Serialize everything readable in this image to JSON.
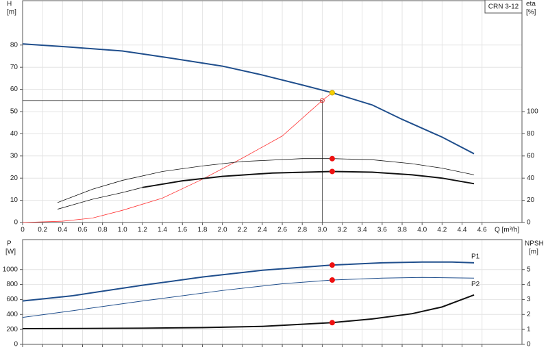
{
  "chart_data": [
    {
      "type": "line",
      "label": "CRN 3-12",
      "y_label": "H",
      "y_unit": "[m]",
      "y2_label": "eta",
      "y2_unit": "[%]",
      "x_label": "Q [m³/h]",
      "xlim": [
        0,
        5
      ],
      "ylim": [
        0,
        100
      ],
      "y2lim": [
        0,
        200
      ],
      "grid": true,
      "xticks": [
        0,
        0.2,
        0.4,
        0.6,
        0.8,
        {
          "value": 1,
          "label": "1.0"
        },
        1.2,
        1.4,
        1.6,
        1.8,
        {
          "value": 2,
          "label": "2.0"
        },
        2.2,
        2.4,
        2.6,
        2.8,
        {
          "value": 3,
          "label": "3.0"
        },
        3.2,
        3.4,
        3.6,
        3.8,
        {
          "value": 4,
          "label": "4.0"
        },
        4.2,
        4.4,
        4.6
      ],
      "yticks": [
        0,
        10,
        20,
        30,
        40,
        50,
        60,
        70,
        80
      ],
      "y2ticks": [
        0,
        20,
        40,
        60,
        80,
        100
      ],
      "series": [
        {
          "color": "#1f4e8c",
          "width": 2,
          "x": [
            0,
            0.5,
            1.0,
            1.2,
            1.5,
            2.0,
            2.4,
            2.8,
            3.1,
            3.5,
            3.8,
            4.2,
            4.52
          ],
          "values": [
            80.5,
            79,
            77.3,
            76,
            74,
            70.5,
            66.5,
            62,
            58.5,
            53,
            46.5,
            38.5,
            31
          ]
        },
        {
          "color": "#ff3333",
          "width": 0.8,
          "axis": "y2",
          "x": [
            0,
            0.4,
            0.7,
            1.0,
            1.4,
            1.8,
            2.2,
            2.6,
            3.0,
            3.1
          ],
          "values": [
            0,
            1.2,
            4,
            11,
            22,
            39,
            58,
            78,
            110,
            117
          ]
        },
        {
          "color": "#111",
          "width": 0.8,
          "x": [
            0.35,
            0.7,
            1.0,
            1.4,
            1.8,
            2.2,
            2.8,
            3.1,
            3.5,
            3.9,
            4.2,
            4.52
          ],
          "values": [
            9,
            15,
            19,
            23,
            25.5,
            27.5,
            28.8,
            28.8,
            28.3,
            26.5,
            24.5,
            21.5
          ]
        },
        {
          "color": "#111",
          "width": 0.8,
          "x": [
            0.35,
            0.7,
            1.0,
            1.2
          ],
          "values": [
            6,
            10.5,
            13.5,
            15.8
          ]
        },
        {
          "color": "#111",
          "width": 2,
          "x": [
            1.2,
            1.6,
            2.0,
            2.5,
            3.1,
            3.5,
            3.9,
            4.2,
            4.52
          ],
          "values": [
            15.8,
            18.8,
            20.8,
            22.3,
            23,
            22.7,
            21.5,
            20,
            17.5
          ]
        }
      ],
      "crosshair": {
        "x": 3.0,
        "y": 55
      },
      "markers": [
        {
          "x": 3.0,
          "y": 55,
          "color": "#e03030",
          "open": true
        },
        {
          "x": 3.1,
          "y": 58.5,
          "color": "#f5d000"
        },
        {
          "x": 3.1,
          "y": 28.8,
          "color": "#ee1111"
        },
        {
          "x": 3.1,
          "y": 23,
          "color": "#ee1111"
        }
      ]
    },
    {
      "type": "line",
      "y_label": "P",
      "y_unit": "[W]",
      "y2_label": "NPSH",
      "y2_unit": "[m]",
      "xlim": [
        0,
        5
      ],
      "ylim": [
        0,
        1400
      ],
      "y2lim": [
        0,
        7
      ],
      "grid": true,
      "xticks": [
        0,
        0.2,
        0.4,
        0.6,
        0.8,
        1,
        1.2,
        1.4,
        1.6,
        1.8,
        2,
        2.2,
        2.4,
        2.6,
        2.8,
        3,
        3.2,
        3.4,
        3.6,
        3.8,
        4,
        4.2,
        4.4,
        4.6
      ],
      "yticks": [
        0,
        200,
        400,
        600,
        800,
        1000
      ],
      "y2ticks": [
        0,
        1,
        2,
        3,
        4,
        5
      ],
      "series": [
        {
          "name": "P1",
          "color": "#1f4e8c",
          "width": 2,
          "x": [
            0,
            0.5,
            1.2,
            1.8,
            2.4,
            3.1,
            3.6,
            4.0,
            4.3,
            4.52
          ],
          "values": [
            580,
            650,
            790,
            900,
            990,
            1060,
            1090,
            1100,
            1100,
            1090
          ]
        },
        {
          "name": "P2",
          "color": "#1f4e8c",
          "width": 1,
          "x": [
            0,
            0.5,
            1.2,
            2.0,
            2.6,
            3.1,
            3.6,
            4.0,
            4.52
          ],
          "values": [
            360,
            450,
            580,
            720,
            810,
            860,
            885,
            895,
            885
          ]
        },
        {
          "color": "#111",
          "width": 2,
          "axis": "y2",
          "x": [
            0,
            1.2,
            1.8,
            2.4,
            3.1,
            3.5,
            3.9,
            4.2,
            4.52
          ],
          "values": [
            1.05,
            1.08,
            1.12,
            1.2,
            1.45,
            1.7,
            2.05,
            2.5,
            3.3
          ]
        }
      ],
      "markers": [
        {
          "x": 3.1,
          "y": 1060,
          "color": "#ee1111"
        },
        {
          "x": 3.1,
          "y": 860,
          "color": "#ee1111"
        },
        {
          "x": 3.1,
          "y": 1.45,
          "color": "#ee1111",
          "axis": "y2"
        }
      ]
    }
  ]
}
